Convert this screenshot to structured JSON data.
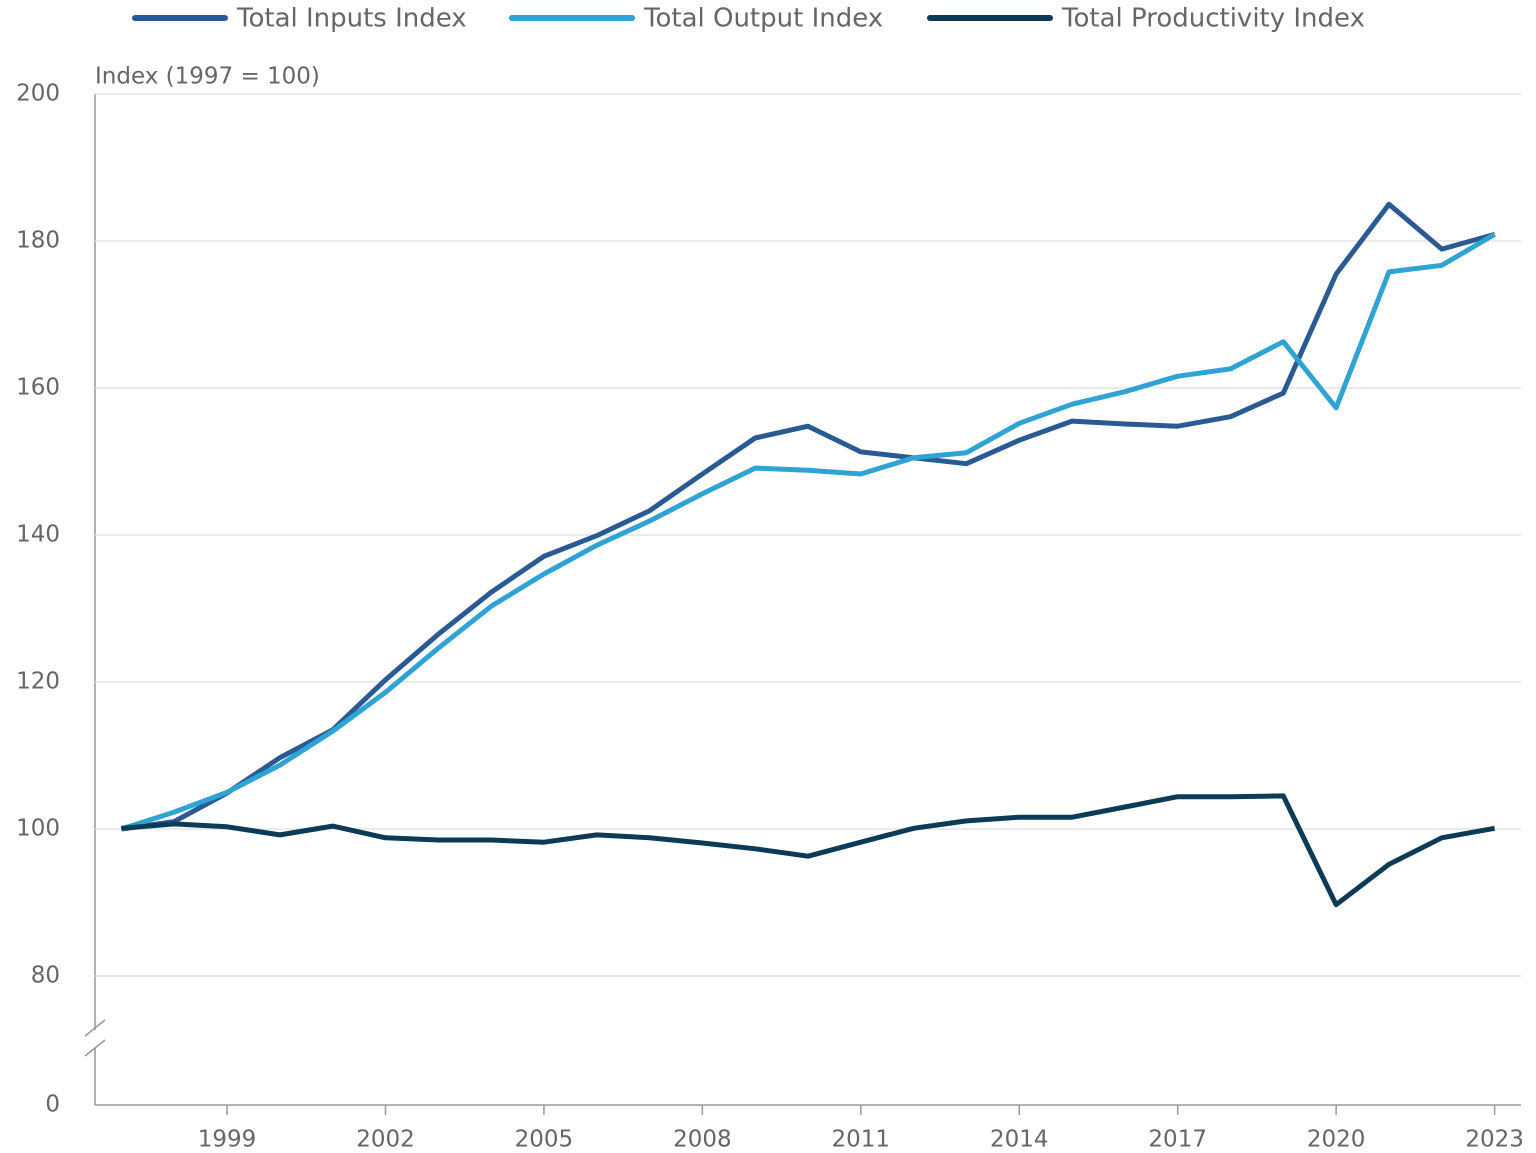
{
  "chart_data": {
    "type": "line",
    "y_axis_label": "Index (1997 = 100)",
    "x": [
      1997,
      1998,
      1999,
      2000,
      2001,
      2002,
      2003,
      2004,
      2005,
      2006,
      2007,
      2008,
      2009,
      2010,
      2011,
      2012,
      2013,
      2014,
      2015,
      2016,
      2017,
      2018,
      2019,
      2020,
      2021,
      2022,
      2023
    ],
    "series": [
      {
        "name": "Total Inputs Index",
        "color": "#2a5a94",
        "values": [
          100,
          101,
          104.9,
          109.7,
          113.5,
          120.3,
          126.5,
          132.2,
          137.1,
          139.9,
          143.3,
          148.3,
          153.2,
          154.8,
          151.3,
          150.5,
          149.7,
          152.9,
          155.5,
          155.1,
          154.8,
          156.1,
          159.3,
          175.5,
          185.0,
          178.9,
          180.9
        ]
      },
      {
        "name": "Total Output Index",
        "color": "#2fa3d4",
        "values": [
          100,
          102.3,
          105,
          108.7,
          113.3,
          118.6,
          124.6,
          130.3,
          134.7,
          138.6,
          141.9,
          145.6,
          149.1,
          148.8,
          148.3,
          150.5,
          151.2,
          155.2,
          157.8,
          159.5,
          161.6,
          162.6,
          166.3,
          157.3,
          175.8,
          176.7,
          180.9
        ]
      },
      {
        "name": "Total Productivity Index",
        "color": "#0d3a56",
        "values": [
          100.1,
          100.7,
          100.3,
          99.2,
          100.4,
          98.8,
          98.5,
          98.5,
          98.2,
          99.2,
          98.8,
          98.1,
          97.3,
          96.3,
          98.2,
          100.1,
          101.1,
          101.6,
          101.6,
          103.0,
          104.4,
          104.4,
          104.5,
          89.7,
          95.2,
          98.8,
          100.1
        ]
      }
    ],
    "xlim": [
      1996.5,
      2023.5
    ],
    "xticks": [
      1999,
      2002,
      2005,
      2008,
      2011,
      2014,
      2017,
      2020,
      2023
    ],
    "ylim": [
      0,
      200
    ],
    "yticks": [
      0,
      80,
      100,
      120,
      140,
      160,
      180,
      200
    ],
    "y_axis_break": true,
    "grid": true,
    "legend": "top"
  }
}
